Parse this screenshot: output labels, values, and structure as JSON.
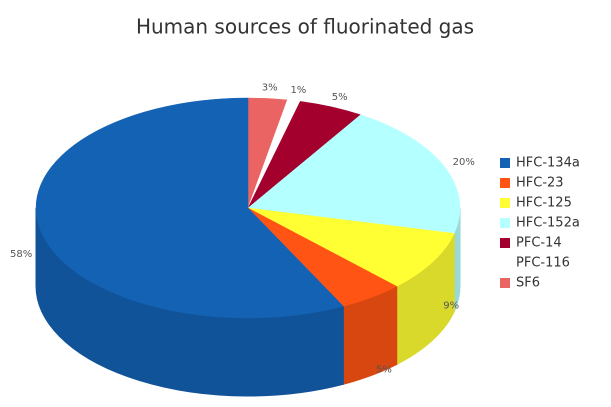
{
  "chart_data": {
    "type": "pie3d",
    "title": "Human sources of fluorinated gas",
    "categories": [
      "HFC-134a",
      "HFC-23",
      "HFC-125",
      "HFC-152a",
      "PFC-14",
      "PFC-116",
      "SF6"
    ],
    "values": [
      58,
      5,
      9,
      20,
      5,
      1,
      3
    ],
    "value_labels": [
      "58%",
      "5%",
      "9%",
      "20%",
      "5%",
      "1%",
      "3%"
    ],
    "colors": [
      "#1462b4",
      "#ff5414",
      "#ffff33",
      "#b4ffff",
      "#a3002e",
      "#ffffff",
      "#ea6464"
    ]
  }
}
